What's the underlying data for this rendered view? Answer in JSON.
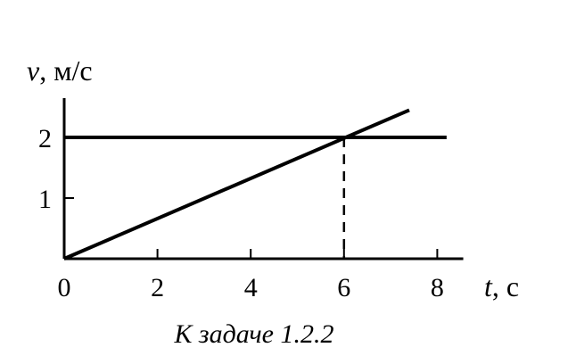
{
  "chart_data": {
    "type": "line",
    "xlabel_var": "t",
    "xlabel_unit": ", с",
    "ylabel_var": "v",
    "ylabel_unit": ", м/с",
    "caption": "К задаче 1.2.2",
    "xlim": [
      0,
      8.5
    ],
    "ylim": [
      0,
      2.5
    ],
    "x_ticks": [
      0,
      2,
      4,
      6,
      8
    ],
    "y_ticks": [
      1,
      2
    ],
    "series": [
      {
        "x": [
          0,
          8.2
        ],
        "y": [
          2,
          2
        ]
      },
      {
        "x": [
          0,
          7.4
        ],
        "y": [
          0,
          2.45
        ]
      }
    ],
    "annotations": [
      {
        "type": "dashed-vertical",
        "x": 6,
        "y_from": 0,
        "y_to": 2
      }
    ],
    "grid": false,
    "line_color": "#000000"
  }
}
